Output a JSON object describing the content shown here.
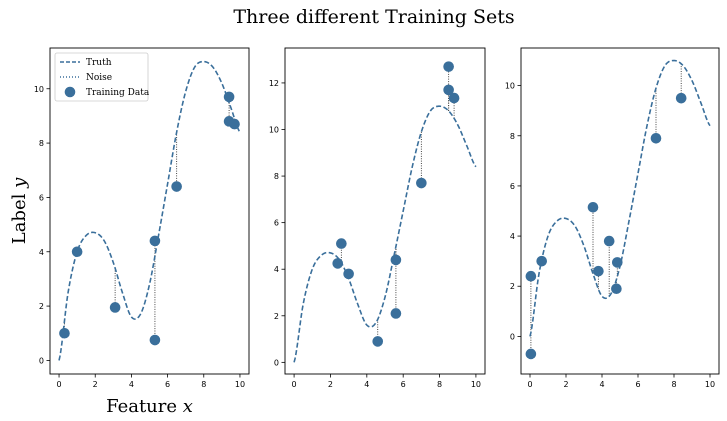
{
  "title": "Three different Training Sets",
  "colors": {
    "truth": "#3a6f9b",
    "noise": "#333333",
    "points": "#3a6f9b"
  },
  "legend": {
    "truth": "Truth",
    "noise": "Noise",
    "data": "Training Data",
    "placement": "upper-left"
  },
  "chart_data": [
    {
      "type": "scatter",
      "xlabel": "Feature x",
      "ylabel": "Label y",
      "xlim": [
        -0.5,
        10.5
      ],
      "ylim": [
        -0.5,
        11.5
      ],
      "xticks": [
        0,
        2,
        4,
        6,
        8,
        10
      ],
      "yticks": [
        0,
        2,
        4,
        6,
        8,
        10
      ],
      "truth_curve": {
        "x": [
          0,
          0.5,
          1,
          1.5,
          2,
          2.5,
          3,
          3.5,
          4,
          4.5,
          5,
          5.5,
          6,
          6.5,
          7,
          7.5,
          8,
          8.5,
          9,
          9.5,
          10
        ],
        "y": [
          0,
          2.5,
          4.0,
          4.6,
          4.7,
          4.4,
          3.6,
          2.5,
          1.6,
          1.7,
          2.8,
          4.6,
          6.5,
          8.4,
          9.9,
          10.8,
          11.0,
          10.8,
          10.2,
          9.3,
          8.4
        ]
      },
      "points": {
        "x": [
          0.3,
          1.0,
          3.1,
          5.3,
          5.3,
          6.5,
          9.4,
          9.4,
          9.7
        ],
        "y": [
          1.0,
          4.0,
          1.95,
          4.4,
          0.75,
          6.4,
          9.7,
          8.8,
          8.7
        ]
      }
    },
    {
      "type": "scatter",
      "xlabel": "",
      "ylabel": "",
      "xlim": [
        -0.5,
        10.5
      ],
      "ylim": [
        -0.5,
        13.5
      ],
      "xticks": [
        0,
        2,
        4,
        6,
        8,
        10
      ],
      "yticks": [
        0,
        2,
        4,
        6,
        8,
        10,
        12
      ],
      "truth_curve": {
        "x": [
          0,
          0.5,
          1,
          1.5,
          2,
          2.5,
          3,
          3.5,
          4,
          4.5,
          5,
          5.5,
          6,
          6.5,
          7,
          7.5,
          8,
          8.5,
          9,
          9.5,
          10
        ],
        "y": [
          0,
          2.5,
          4.0,
          4.6,
          4.7,
          4.4,
          3.6,
          2.5,
          1.6,
          1.7,
          2.8,
          4.6,
          6.5,
          8.4,
          9.9,
          10.8,
          11.0,
          10.8,
          10.2,
          9.3,
          8.4
        ]
      },
      "points": {
        "x": [
          2.4,
          2.6,
          3.0,
          4.6,
          5.6,
          5.6,
          7.0,
          8.5,
          8.5,
          8.8
        ],
        "y": [
          4.25,
          5.1,
          3.8,
          0.9,
          4.4,
          2.1,
          7.7,
          12.7,
          11.7,
          11.35
        ]
      }
    },
    {
      "type": "scatter",
      "xlabel": "",
      "ylabel": "",
      "xlim": [
        -0.5,
        10.5
      ],
      "ylim": [
        -1.5,
        11.5
      ],
      "xticks": [
        0,
        2,
        4,
        6,
        8,
        10
      ],
      "yticks": [
        0,
        2,
        4,
        6,
        8,
        10
      ],
      "truth_curve": {
        "x": [
          0,
          0.5,
          1,
          1.5,
          2,
          2.5,
          3,
          3.5,
          4,
          4.5,
          5,
          5.5,
          6,
          6.5,
          7,
          7.5,
          8,
          8.5,
          9,
          9.5,
          10
        ],
        "y": [
          0,
          2.5,
          4.0,
          4.6,
          4.7,
          4.4,
          3.6,
          2.5,
          1.6,
          1.7,
          2.8,
          4.6,
          6.5,
          8.4,
          9.9,
          10.8,
          11.0,
          10.8,
          10.2,
          9.3,
          8.4
        ]
      },
      "points": {
        "x": [
          0.05,
          0.05,
          0.65,
          3.5,
          3.8,
          4.4,
          4.8,
          4.85,
          7.0,
          8.4
        ],
        "y": [
          -0.7,
          2.4,
          3.0,
          5.15,
          2.6,
          3.8,
          1.9,
          2.95,
          7.9,
          9.5
        ]
      }
    }
  ]
}
